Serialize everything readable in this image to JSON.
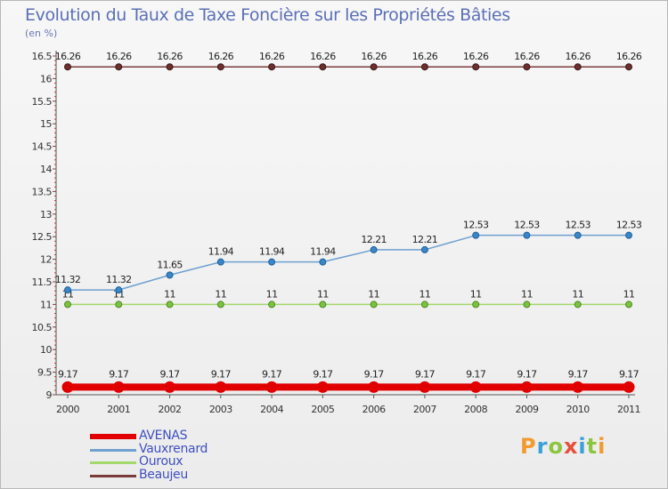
{
  "header": {
    "title": "Evolution du Taux de Taxe Foncière sur les Propriétés Bâties",
    "unit": "(en %)"
  },
  "logo": {
    "text": "Proxiti",
    "letters": [
      {
        "ch": "P",
        "color": "#f29a2e"
      },
      {
        "ch": "r",
        "color": "#3aa0d8"
      },
      {
        "ch": "o",
        "color": "#8cc63f"
      },
      {
        "ch": "x",
        "color": "#e84e3c"
      },
      {
        "ch": "i",
        "color": "#3aa0d8"
      },
      {
        "ch": "t",
        "color": "#8cc63f"
      },
      {
        "ch": "i",
        "color": "#f29a2e"
      }
    ]
  },
  "chart_data": {
    "type": "line",
    "title": "Evolution du Taux de Taxe Foncière sur les Propriétés Bâties",
    "ylabel": "(en %)",
    "xlabel": "",
    "x": [
      "2000",
      "2001",
      "2002",
      "2003",
      "2004",
      "2005",
      "2006",
      "2007",
      "2008",
      "2009",
      "2010",
      "2011"
    ],
    "ylim": [
      9,
      16.5
    ],
    "yticks": [
      "9",
      "9.5",
      "10",
      "10.5",
      "11",
      "11.5",
      "12",
      "12.5",
      "13",
      "13.5",
      "14",
      "14.5",
      "15",
      "15.5",
      "16",
      "16.5"
    ],
    "grid": false,
    "legend_position": "bottom-left",
    "series": [
      {
        "name": "AVENAS",
        "color": "#e00000",
        "values": [
          9.17,
          9.17,
          9.17,
          9.17,
          9.17,
          9.17,
          9.17,
          9.17,
          9.17,
          9.17,
          9.17,
          9.17
        ],
        "labels": [
          "9.17",
          "9.17",
          "9.17",
          "9.17",
          "9.17",
          "9.17",
          "9.17",
          "9.17",
          "9.17",
          "9.17",
          "9.17",
          "9.17"
        ]
      },
      {
        "name": "Vauxrenard",
        "color": "#6fa0d0",
        "values": [
          11.32,
          11.32,
          11.65,
          11.94,
          11.94,
          11.94,
          12.21,
          12.21,
          12.53,
          12.53,
          12.53,
          12.53
        ],
        "labels": [
          "11.32",
          "11.32",
          "11.65",
          "11.94",
          "11.94",
          "11.94",
          "12.21",
          "12.21",
          "12.53",
          "12.53",
          "12.53",
          "12.53"
        ]
      },
      {
        "name": "Ouroux",
        "color": "#a3d86a",
        "values": [
          11,
          11,
          11,
          11,
          11,
          11,
          11,
          11,
          11,
          11,
          11,
          11
        ],
        "labels": [
          "11",
          "11",
          "11",
          "11",
          "11",
          "11",
          "11",
          "11",
          "11",
          "11",
          "11",
          "11"
        ]
      },
      {
        "name": "Beaujeu",
        "color": "#7a3b3b",
        "values": [
          16.26,
          16.26,
          16.26,
          16.26,
          16.26,
          16.26,
          16.26,
          16.26,
          16.26,
          16.26,
          16.26,
          16.26
        ],
        "labels": [
          "16.26",
          "16.26",
          "16.26",
          "16.26",
          "16.26",
          "16.26",
          "16.26",
          "16.26",
          "16.26",
          "16.26",
          "16.26",
          "16.26"
        ]
      }
    ]
  }
}
